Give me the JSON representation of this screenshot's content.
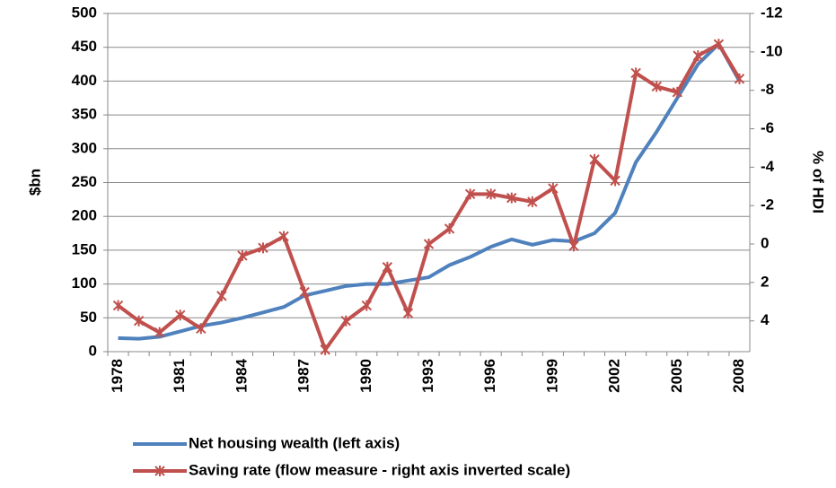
{
  "chart_data": {
    "type": "line",
    "categories": [
      "1978",
      null,
      null,
      "1981",
      null,
      null,
      "1984",
      null,
      null,
      "1987",
      null,
      null,
      "1990",
      null,
      null,
      "1993",
      null,
      null,
      "1996",
      null,
      null,
      "1999",
      null,
      null,
      "2002",
      null,
      null,
      "2005",
      null,
      null,
      "2008"
    ],
    "series": [
      {
        "name": "Net housing wealth (left axis)",
        "color": "#4f81bd",
        "axis": "y",
        "values": [
          20,
          19,
          22,
          30,
          38,
          43,
          50,
          58,
          66,
          83,
          90,
          97,
          100,
          100,
          105,
          110,
          128,
          140,
          155,
          166,
          158,
          165,
          163,
          175,
          205,
          280,
          325,
          375,
          425,
          455,
          400
        ]
      },
      {
        "name": "Saving rate (flow measure - right axis inverted scale)",
        "color": "#c0504d",
        "axis": "y2",
        "marker": "asterisk",
        "values": [
          3.2,
          4.0,
          4.6,
          3.7,
          4.4,
          2.7,
          0.6,
          0.2,
          -0.4,
          2.5,
          5.5,
          4.0,
          3.2,
          1.2,
          3.6,
          0.0,
          -0.8,
          -2.6,
          -2.6,
          -2.4,
          -2.2,
          -2.9,
          0.1,
          -4.4,
          -3.3,
          -8.9,
          -8.2,
          -7.9,
          -9.8,
          -10.4,
          -8.6
        ]
      }
    ],
    "y_label": "$bn",
    "y2_label": "% of HDI",
    "ylim": [
      0,
      500
    ],
    "yticks": [
      0,
      50,
      100,
      150,
      200,
      250,
      300,
      350,
      400,
      450,
      500
    ],
    "y2lim": [
      5.6,
      -12
    ],
    "y2ticks": [
      -12,
      -10,
      -8,
      -6,
      -4,
      -2,
      0,
      2,
      4
    ],
    "grid": true,
    "legend": "bottom"
  }
}
